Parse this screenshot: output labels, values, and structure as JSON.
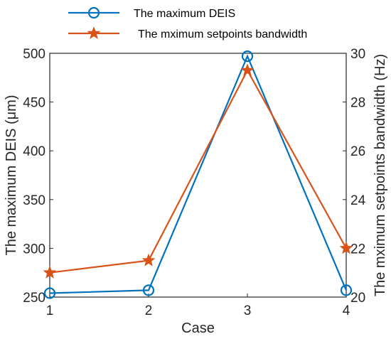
{
  "chart_data": {
    "type": "line",
    "xlabel": "Case",
    "x": [
      1,
      2,
      3,
      4
    ],
    "xticks": [
      "1",
      "2",
      "3",
      "4"
    ],
    "xlim": [
      1,
      4
    ],
    "y_left": {
      "label": "The maximum DEIS (μm)",
      "ylim": [
        250,
        500
      ],
      "ticks": [
        "250",
        "300",
        "350",
        "400",
        "450",
        "500"
      ]
    },
    "y_right": {
      "label": "The mximum setpoints bandwidth (Hz)",
      "ylim": [
        20,
        30
      ],
      "ticks": [
        "20",
        "22",
        "24",
        "26",
        "28",
        "30"
      ]
    },
    "series": [
      {
        "name": "The maximum DEIS",
        "axis": "left",
        "marker": "circle",
        "color": "#0072BD",
        "values": [
          254,
          257,
          497,
          257
        ]
      },
      {
        "name": "The mximum setpoints bandwidth",
        "axis": "right",
        "marker": "star",
        "color": "#D95319",
        "values": [
          21.0,
          21.5,
          29.3,
          22.0
        ]
      }
    ],
    "legend_position": "top",
    "grid": false
  }
}
